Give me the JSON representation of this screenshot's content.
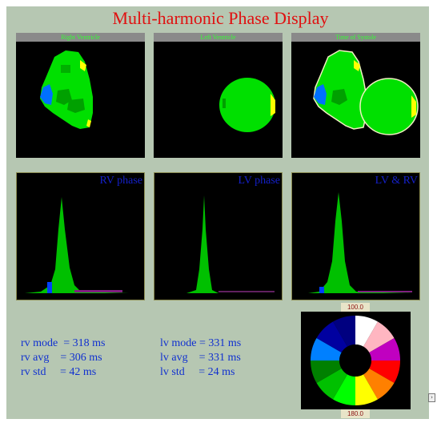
{
  "title": "Multi-harmonic Phase Display",
  "panels": {
    "right_ventricle": "Right Ventricle",
    "left_ventricle": "Left Ventricle",
    "time_of_systole": "Time of Systole"
  },
  "histograms": {
    "rv": "RV phase",
    "lv": "LV phase",
    "both": "LV & RV"
  },
  "stats": {
    "rv_mode": "rv mode  = 318 ms",
    "rv_avg": "rv avg    = 306 ms",
    "rv_std": "rv std     = 42 ms",
    "lv_mode": "lv mode = 331 ms",
    "lv_avg": "lv avg    = 331 ms",
    "lv_std": "lv std     = 24 ms"
  },
  "wheel": {
    "top_label": "100.0",
    "bottom_label": "180.0",
    "segment_colors": [
      "#ffffff",
      "#ffb6c1",
      "#c000c0",
      "#ff0000",
      "#ff8000",
      "#ffff00",
      "#00ff00",
      "#00c000",
      "#008000",
      "#0080ff",
      "#0000a0",
      "#000080"
    ]
  },
  "colors": {
    "title": "#e01010",
    "text": "#1030d0",
    "background": "#b6c7b2",
    "green": "#00e000"
  }
}
